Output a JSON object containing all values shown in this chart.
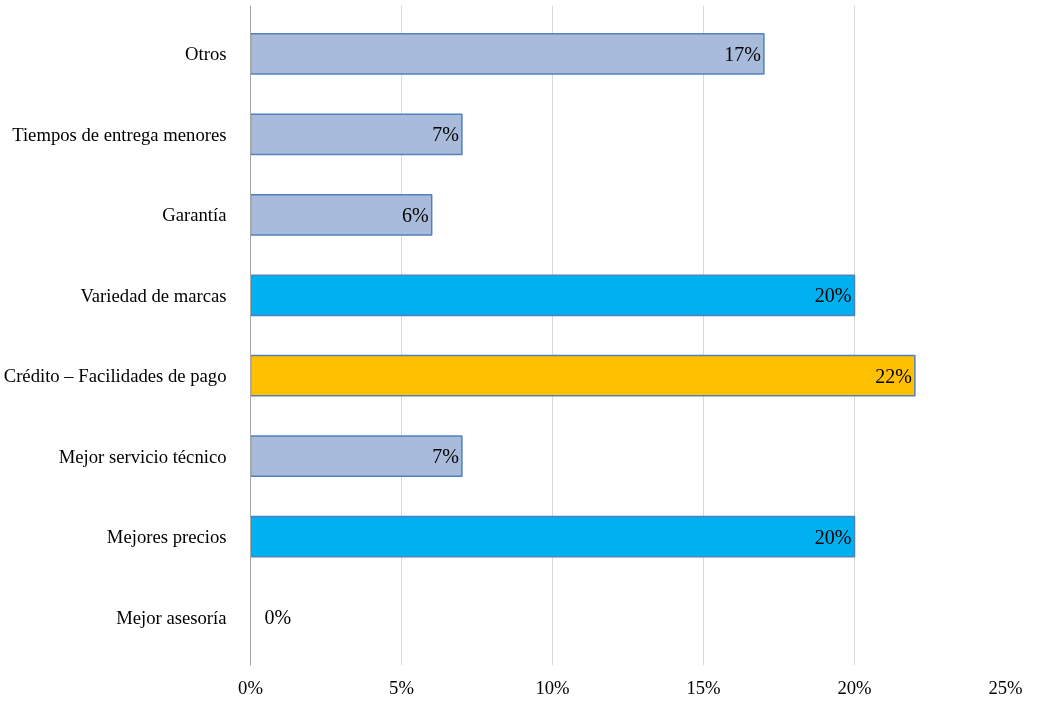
{
  "chart_data": {
    "type": "bar",
    "orientation": "horizontal",
    "categories": [
      "Otros",
      "Tiempos de entrega menores",
      "Garantía",
      "Variedad de marcas",
      "Crédito – Facilidades de pago",
      "Mejor servicio técnico",
      "Mejores precios",
      "Mejor asesoría"
    ],
    "values": [
      17,
      7,
      6,
      20,
      22,
      7,
      20,
      0
    ],
    "colors": [
      "#a9bbdb",
      "#a9bbdb",
      "#a9bbdb",
      "#00b0f0",
      "#ffc000",
      "#a9bbdb",
      "#00b0f0",
      "#a9bbdb"
    ],
    "value_labels": [
      "17%",
      "7%",
      "6%",
      "20%",
      "22%",
      "7%",
      "20%",
      "0%"
    ],
    "xlim": [
      0,
      25
    ],
    "xticks": [
      {
        "value": 0,
        "label": "0%"
      },
      {
        "value": 5,
        "label": "5%"
      },
      {
        "value": 10,
        "label": "10%"
      },
      {
        "value": 15,
        "label": "15%"
      },
      {
        "value": 20,
        "label": "20%"
      },
      {
        "value": 25,
        "label": "25%"
      }
    ],
    "grid": "x"
  }
}
